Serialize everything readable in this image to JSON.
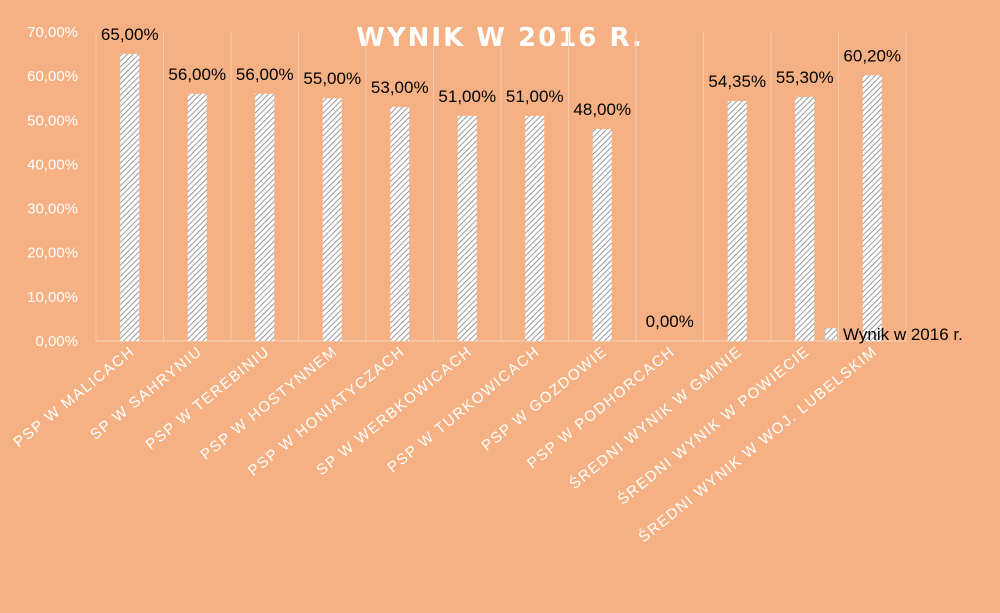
{
  "chart_data": {
    "type": "bar",
    "title": "WYNIK W 2016 R.",
    "categories": [
      "PSP W MALICACH",
      "SP W SAHRYNIU",
      "PSP W TEREBINIU",
      "PSP W HOSTYNNEM",
      "PSP W HONIATYCZACH",
      "SP W WERBKOWICACH",
      "PSP W TURKOWICACH",
      "PSP W GOZDOWIE",
      "PSP W PODHORCACH",
      "ŚREDNI WYNIK W GMINIE",
      "ŚREDNI WYNIK W POWIECIE",
      "ŚREDNI WYNIK W WOJ. LUBELSKIM"
    ],
    "series": [
      {
        "name": "Wynik w 2016 r.",
        "values": [
          65.0,
          56.0,
          56.0,
          55.0,
          53.0,
          51.0,
          51.0,
          48.0,
          0.0,
          54.35,
          55.3,
          60.2
        ],
        "labels": [
          "65,00%",
          "56,00%",
          "56,00%",
          "55,00%",
          "53,00%",
          "51,00%",
          "51,00%",
          "48,00%",
          "0,00%",
          "54,35%",
          "55,30%",
          "60,20%"
        ]
      }
    ],
    "yticks": [
      "0,00%",
      "10,00%",
      "20,00%",
      "30,00%",
      "40,00%",
      "50,00%",
      "60,00%",
      "70,00%"
    ],
    "ylim": [
      0,
      70
    ],
    "grid": "vertical",
    "legend": "right",
    "colors": {
      "background": "#F5B183",
      "bar_fill": "#FFFFFF",
      "bar_hatch": "#7F7F7F",
      "grid": "#F8CBAD",
      "text_light": "#FFFFFF",
      "text_dark": "#000000"
    }
  }
}
